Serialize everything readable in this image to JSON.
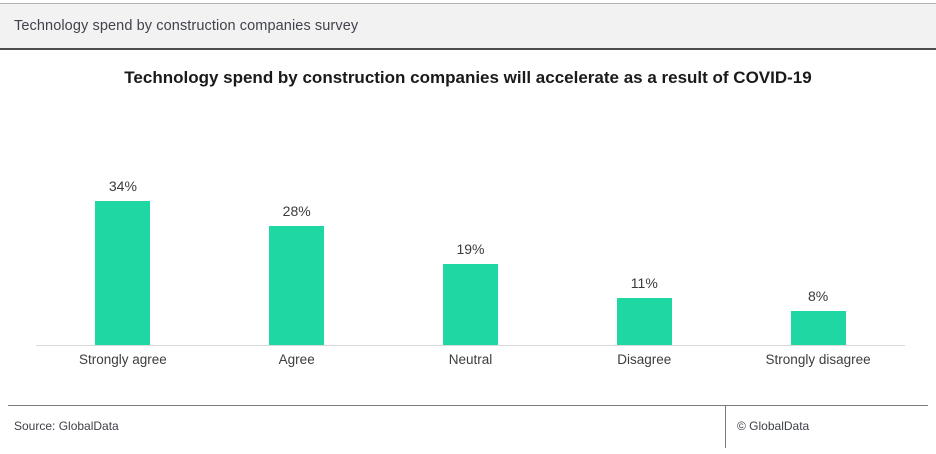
{
  "header": {
    "title": "Technology spend by construction companies survey"
  },
  "footer": {
    "source": "Source: GlobalData",
    "copyright": "© GlobalData"
  },
  "colors": {
    "bar": "#1ed7a3",
    "header_bg": "#f2f2f2",
    "header_border_bottom": "#4d4d4d",
    "axis_line": "#d9d9d9",
    "footer_line": "#7a7a7a",
    "text_dark": "#3a3a3a"
  },
  "chart_data": {
    "type": "bar",
    "title": "Technology spend by construction companies will accelerate as a result of COVID-19",
    "categories": [
      "Strongly agree",
      "Agree",
      "Neutral",
      "Disagree",
      "Strongly disagree"
    ],
    "values": [
      34,
      28,
      19,
      11,
      8
    ],
    "value_labels": [
      "34%",
      "28%",
      "19%",
      "11%",
      "8%"
    ],
    "unit": "percent",
    "xlabel": "",
    "ylabel": "",
    "ylim": [
      0,
      40
    ],
    "grid": false,
    "legend": false,
    "data_labels_position": "above-bars",
    "bar_color": "#1ed7a3"
  }
}
